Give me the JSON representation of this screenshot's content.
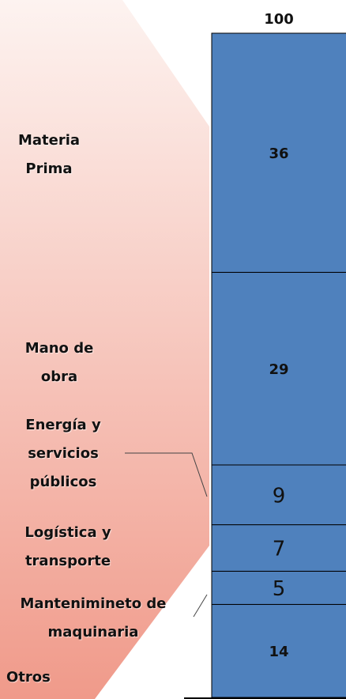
{
  "chart_data": {
    "type": "stacked-bar",
    "total": 100,
    "categories": [
      "Materia Prima",
      "Mano de obra",
      "Energía y servicios públicos",
      "Logística y transporte",
      "Mantenimineto de maquinaria",
      "Otros"
    ],
    "values": [
      36,
      29,
      9,
      7,
      5,
      14
    ],
    "color": "#4f81bd",
    "ylim": [
      0,
      100
    ]
  }
}
